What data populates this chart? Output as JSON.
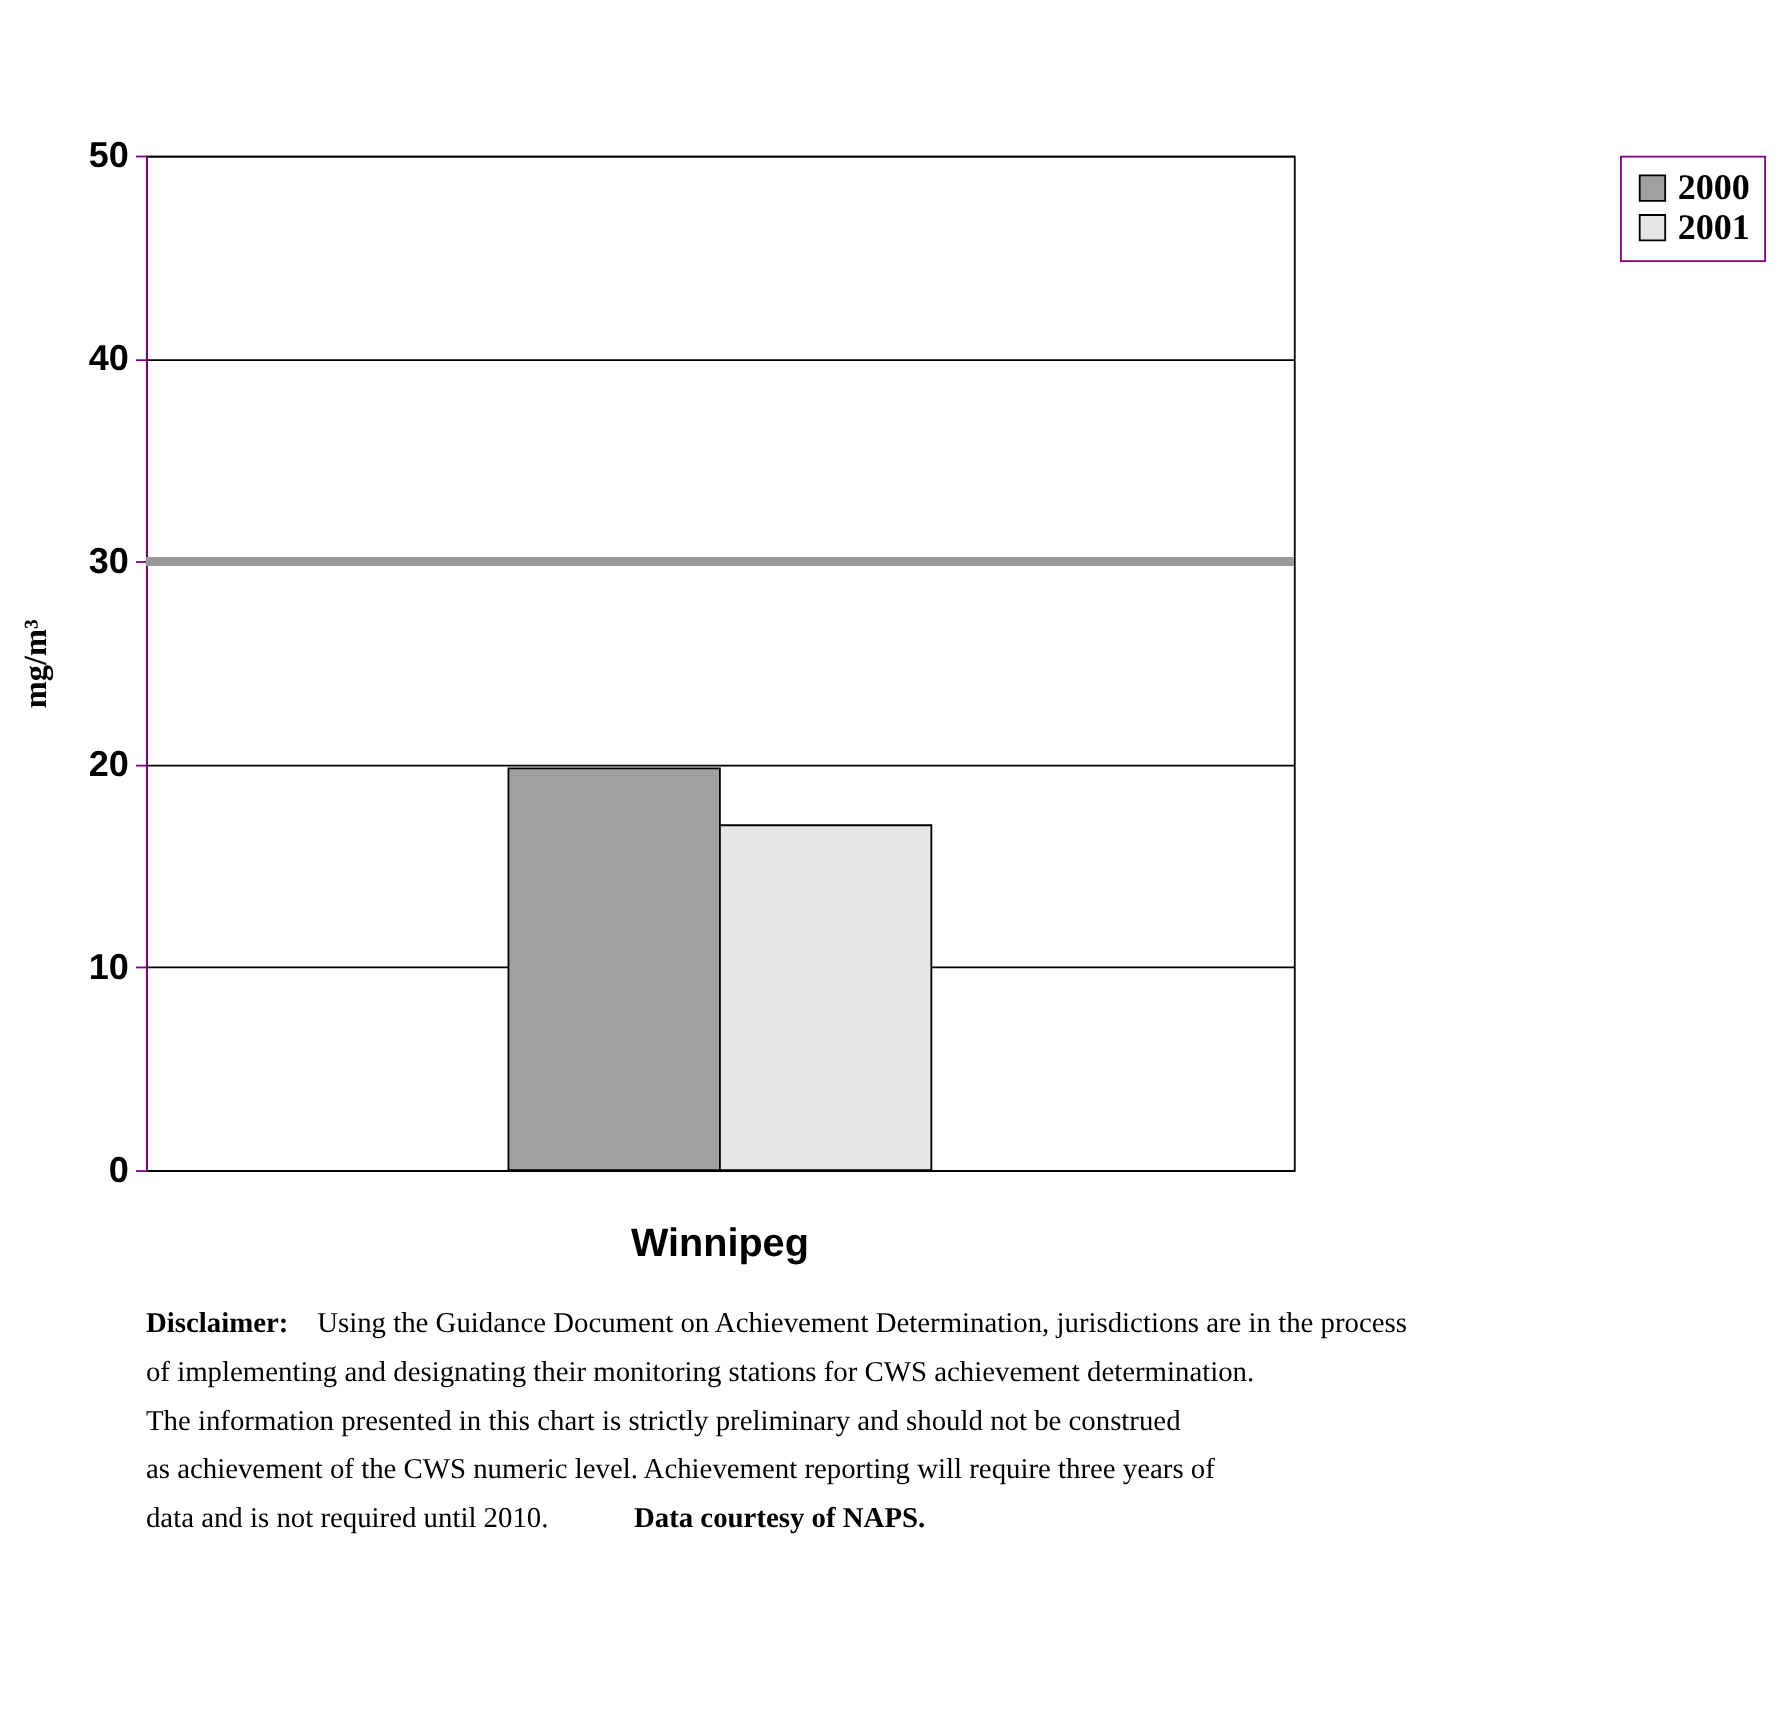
{
  "chart_data": {
    "type": "bar",
    "categories": [
      "Winnipeg"
    ],
    "series": [
      {
        "name": "2000",
        "color": "#a0a0a0",
        "values": [
          19.8
        ]
      },
      {
        "name": "2001",
        "color": "#e6e6e6",
        "values": [
          17.0
        ]
      }
    ],
    "ylabel": "mg/m³",
    "ylim": [
      0,
      50
    ],
    "yticks": [
      0,
      10,
      20,
      30,
      40,
      50
    ],
    "grid": "y",
    "legend": "right",
    "ref_lines": [
      {
        "axis": "y",
        "value": 30,
        "color": "#999999"
      }
    ],
    "annotations": [
      "Disclaimer:",
      "Using the Guidance Document on Achievement Determination, jurisdictions are in the process of implementing and designating their monitoring stations for CWS achievement determination.  The information presented in this chart is strictly preliminary and should not be construed as achievement of the CWS numeric level.  Achievement reporting will require three years of data and is not required until 2010.",
      "Data courtesy of NAPS."
    ]
  }
}
